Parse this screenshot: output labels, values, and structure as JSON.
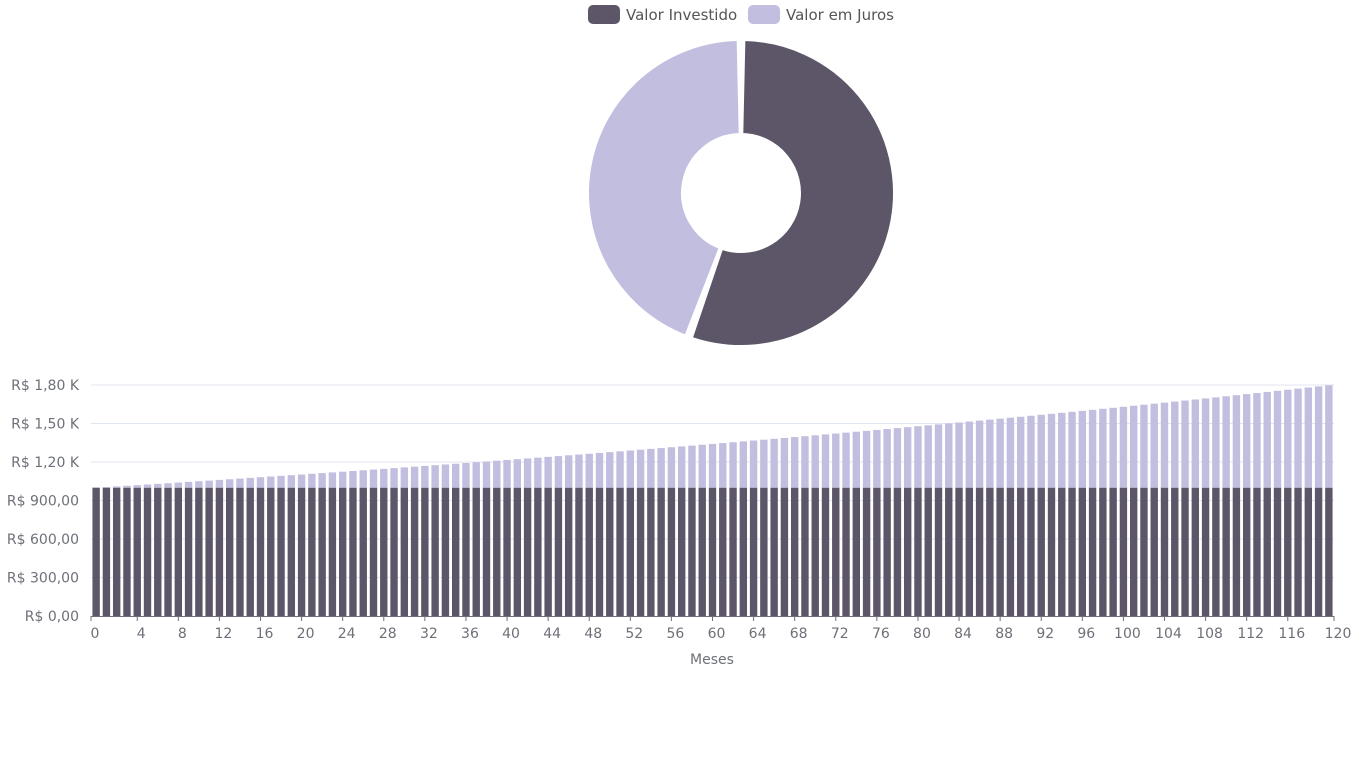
{
  "legend": {
    "items": [
      {
        "label": "Valor Investido",
        "color": "#5d5668"
      },
      {
        "label": "Valor em Juros",
        "color": "#c1bedf"
      }
    ]
  },
  "chart_data": [
    {
      "type": "pie",
      "variant": "donut",
      "series": [
        {
          "name": "Valor Investido",
          "value": 1000,
          "color": "#5d5668"
        },
        {
          "name": "Valor em Juros",
          "value": 800,
          "color": "#c1bedf"
        }
      ]
    },
    {
      "type": "bar",
      "stacked": true,
      "xlabel": "Meses",
      "ylabel": "",
      "x_range": [
        0,
        120
      ],
      "ylim": [
        0,
        1800
      ],
      "x_ticks": [
        "0",
        "4",
        "8",
        "12",
        "16",
        "20",
        "24",
        "28",
        "32",
        "36",
        "40",
        "44",
        "48",
        "52",
        "56",
        "60",
        "64",
        "68",
        "72",
        "76",
        "80",
        "84",
        "88",
        "92",
        "96",
        "100",
        "104",
        "108",
        "112",
        "116",
        "120"
      ],
      "y_ticks": [
        {
          "value": 0,
          "label": "R$ 0,00"
        },
        {
          "value": 300,
          "label": "R$  300,00"
        },
        {
          "value": 600,
          "label": "R$  600,00"
        },
        {
          "value": 900,
          "label": "R$  900,00"
        },
        {
          "value": 1200,
          "label": "R$  1,20 K"
        },
        {
          "value": 1500,
          "label": "R$  1,50 K"
        },
        {
          "value": 1800,
          "label": "R$  1,80 K"
        }
      ],
      "grid": true,
      "series": [
        {
          "name": "Valor Investido",
          "color": "#5d5668",
          "constant_value": 1000
        },
        {
          "name": "Valor em Juros",
          "color": "#c1bedf",
          "monthly_rate": 0.0049
        }
      ]
    }
  ]
}
